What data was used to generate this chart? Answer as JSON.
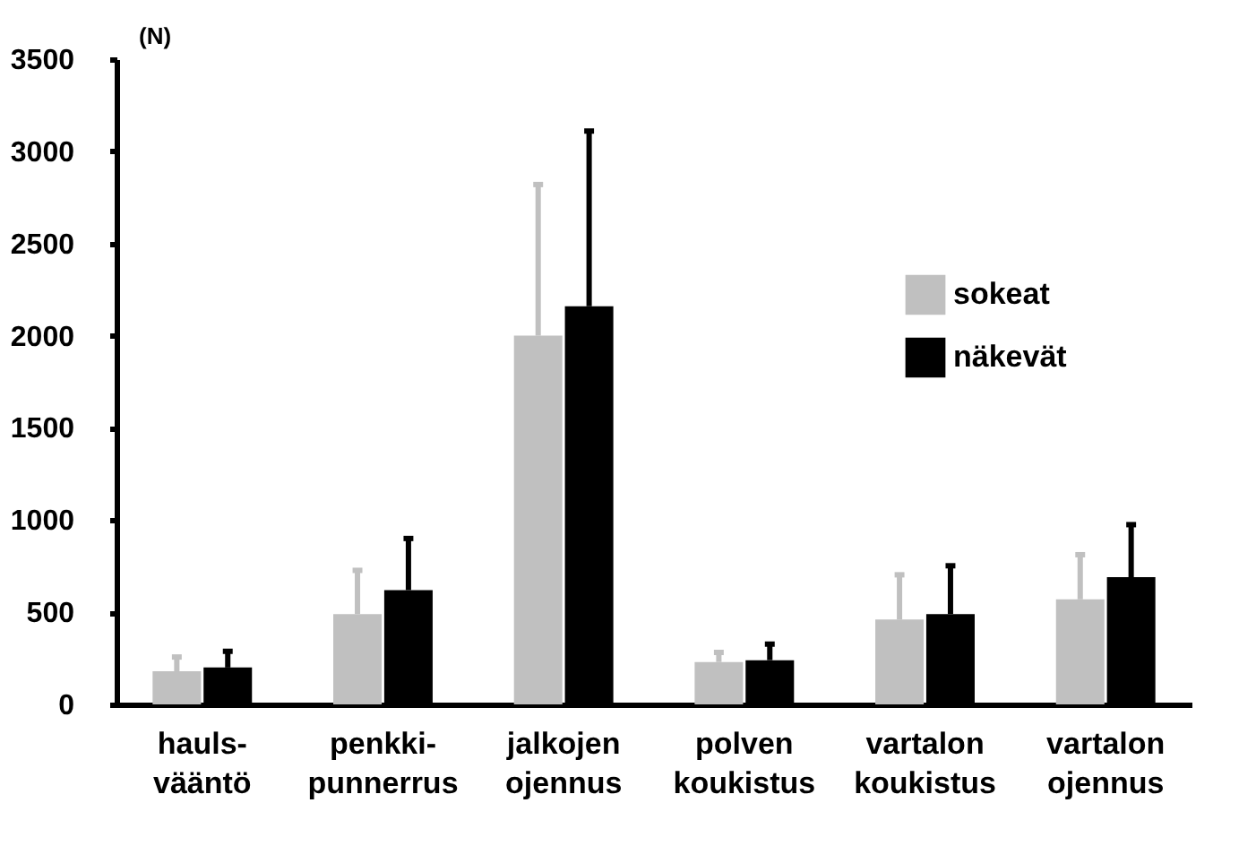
{
  "chart_data": {
    "type": "bar",
    "ylabel": "(N)",
    "categories": [
      "hauls-\nvääntö",
      "penkki-\npunnerrus",
      "jalkojen\nojennus",
      "polven\nkoukistus",
      "vartalon\nkoukistus",
      "vartalon\nojennus"
    ],
    "series": [
      {
        "name": "sokeat",
        "color": "#c0c0c0",
        "values": [
          180,
          490,
          2000,
          230,
          460,
          570
        ],
        "errors": [
          [
            180,
            257
          ],
          [
            490,
            727
          ],
          [
            2000,
            2820
          ],
          [
            230,
            282
          ],
          [
            460,
            703
          ],
          [
            570,
            812
          ]
        ]
      },
      {
        "name": "näkevät",
        "color": "#000000",
        "values": [
          200,
          620,
          2160,
          240,
          490,
          690
        ],
        "errors": [
          [
            200,
            288
          ],
          [
            620,
            900
          ],
          [
            2160,
            3110
          ],
          [
            240,
            327
          ],
          [
            490,
            752
          ],
          [
            690,
            975
          ]
        ]
      }
    ],
    "ylim": [
      0,
      3500
    ],
    "yticks": [
      0,
      500,
      1000,
      1500,
      2000,
      2500,
      3000,
      3500
    ],
    "grid": false,
    "legend": "right"
  }
}
